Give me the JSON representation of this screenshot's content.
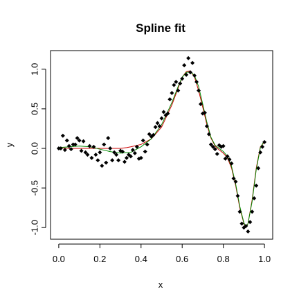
{
  "chart_data": {
    "type": "scatter",
    "title": "Spline fit",
    "xlabel": "x",
    "ylabel": "y",
    "xlim": [
      0,
      1
    ],
    "ylim": [
      -1.05,
      1.1
    ],
    "x_ticks": [
      0.0,
      0.2,
      0.4,
      0.6,
      0.8,
      1.0
    ],
    "x_tick_labels": [
      "0.0",
      "0.2",
      "0.4",
      "0.6",
      "0.8",
      "1.0"
    ],
    "y_ticks": [
      -1.0,
      -0.5,
      0.0,
      0.5,
      1.0
    ],
    "y_tick_labels": [
      "-1.0",
      "-0.5",
      "0.0",
      "0.5",
      "1.0"
    ],
    "grid": false,
    "series": [
      {
        "kind": "points",
        "color": "#000000",
        "marker": "diamond",
        "x": [
          0.0,
          0.01,
          0.02,
          0.03,
          0.04,
          0.05,
          0.06,
          0.07,
          0.08,
          0.09,
          0.1,
          0.11,
          0.12,
          0.13,
          0.14,
          0.15,
          0.16,
          0.17,
          0.18,
          0.19,
          0.2,
          0.21,
          0.22,
          0.23,
          0.24,
          0.25,
          0.26,
          0.27,
          0.28,
          0.29,
          0.3,
          0.31,
          0.32,
          0.33,
          0.34,
          0.35,
          0.36,
          0.37,
          0.38,
          0.39,
          0.4,
          0.41,
          0.42,
          0.43,
          0.44,
          0.45,
          0.46,
          0.47,
          0.48,
          0.49,
          0.5,
          0.51,
          0.52,
          0.53,
          0.54,
          0.55,
          0.56,
          0.57,
          0.58,
          0.59,
          0.6,
          0.61,
          0.62,
          0.63,
          0.64,
          0.65,
          0.66,
          0.67,
          0.68,
          0.69,
          0.7,
          0.71,
          0.72,
          0.73,
          0.74,
          0.75,
          0.76,
          0.77,
          0.78,
          0.79,
          0.8,
          0.81,
          0.82,
          0.83,
          0.84,
          0.85,
          0.86,
          0.87,
          0.88,
          0.89,
          0.9,
          0.91,
          0.92,
          0.93,
          0.94,
          0.95,
          0.96,
          0.97,
          0.98,
          0.99,
          1.0
        ],
        "y": [
          0.0,
          0.0,
          0.16,
          -0.02,
          0.1,
          0.03,
          -0.01,
          0.05,
          0.05,
          0.13,
          0.1,
          -0.03,
          0.09,
          -0.05,
          -0.08,
          0.03,
          -0.12,
          0.02,
          -0.08,
          -0.15,
          -0.05,
          -0.22,
          0.05,
          -0.18,
          0.13,
          0.0,
          -0.15,
          -0.05,
          -0.08,
          -0.15,
          -0.03,
          -0.04,
          -0.17,
          -0.12,
          -0.08,
          -0.1,
          -0.02,
          -0.06,
          0.02,
          -0.13,
          -0.12,
          0.1,
          -0.04,
          0.05,
          0.18,
          0.15,
          0.17,
          0.27,
          0.32,
          0.28,
          0.38,
          0.46,
          0.42,
          0.44,
          0.62,
          0.7,
          0.8,
          0.84,
          0.73,
          0.82,
          0.88,
          1.05,
          0.93,
          1.14,
          0.96,
          1.08,
          0.92,
          0.84,
          0.73,
          0.56,
          0.44,
          0.45,
          0.28,
          0.18,
          0.05,
          0.02,
          -0.01,
          -0.07,
          0.04,
          0.02,
          0.03,
          -0.13,
          -0.1,
          -0.14,
          -0.19,
          -0.38,
          -0.42,
          -0.6,
          -0.8,
          -0.95,
          -1.0,
          -0.98,
          -1.05,
          -0.93,
          -0.8,
          -0.63,
          -0.47,
          -0.25,
          -0.05,
          0.02,
          0.08
        ]
      },
      {
        "kind": "line",
        "color": "#cc0000",
        "x": [
          0.0,
          0.05,
          0.1,
          0.15,
          0.2,
          0.25,
          0.3,
          0.33,
          0.35,
          0.4,
          0.45,
          0.5,
          0.55,
          0.58,
          0.6,
          0.62,
          0.64,
          0.66,
          0.68,
          0.7,
          0.72,
          0.74,
          0.76,
          0.78,
          0.8,
          0.82,
          0.84,
          0.86,
          0.88,
          0.9,
          0.91,
          0.92,
          0.94,
          0.96,
          0.98,
          1.0
        ],
        "y": [
          0.01,
          0.0,
          0.0,
          0.0,
          0.0,
          0.0,
          0.0,
          0.01,
          0.02,
          0.05,
          0.12,
          0.27,
          0.55,
          0.76,
          0.9,
          0.97,
          0.98,
          0.9,
          0.73,
          0.52,
          0.3,
          0.13,
          0.03,
          -0.02,
          -0.06,
          -0.12,
          -0.25,
          -0.47,
          -0.75,
          -0.95,
          -1.0,
          -0.95,
          -0.65,
          -0.25,
          0.02,
          0.08
        ]
      },
      {
        "kind": "line",
        "color": "#008800",
        "x": [
          0.0,
          0.05,
          0.1,
          0.15,
          0.2,
          0.25,
          0.3,
          0.35,
          0.4,
          0.45,
          0.5,
          0.55,
          0.58,
          0.6,
          0.62,
          0.64,
          0.66,
          0.68,
          0.7,
          0.72,
          0.74,
          0.76,
          0.78,
          0.8,
          0.82,
          0.84,
          0.86,
          0.88,
          0.9,
          0.91,
          0.92,
          0.94,
          0.96,
          0.98,
          1.0
        ],
        "y": [
          0.01,
          0.02,
          0.03,
          0.02,
          -0.01,
          -0.04,
          -0.06,
          -0.05,
          0.02,
          0.12,
          0.3,
          0.58,
          0.78,
          0.9,
          0.96,
          0.97,
          0.92,
          0.78,
          0.56,
          0.33,
          0.14,
          0.04,
          0.0,
          -0.04,
          -0.1,
          -0.23,
          -0.45,
          -0.73,
          -0.94,
          -0.99,
          -0.95,
          -0.67,
          -0.27,
          0.01,
          0.1
        ]
      }
    ]
  }
}
